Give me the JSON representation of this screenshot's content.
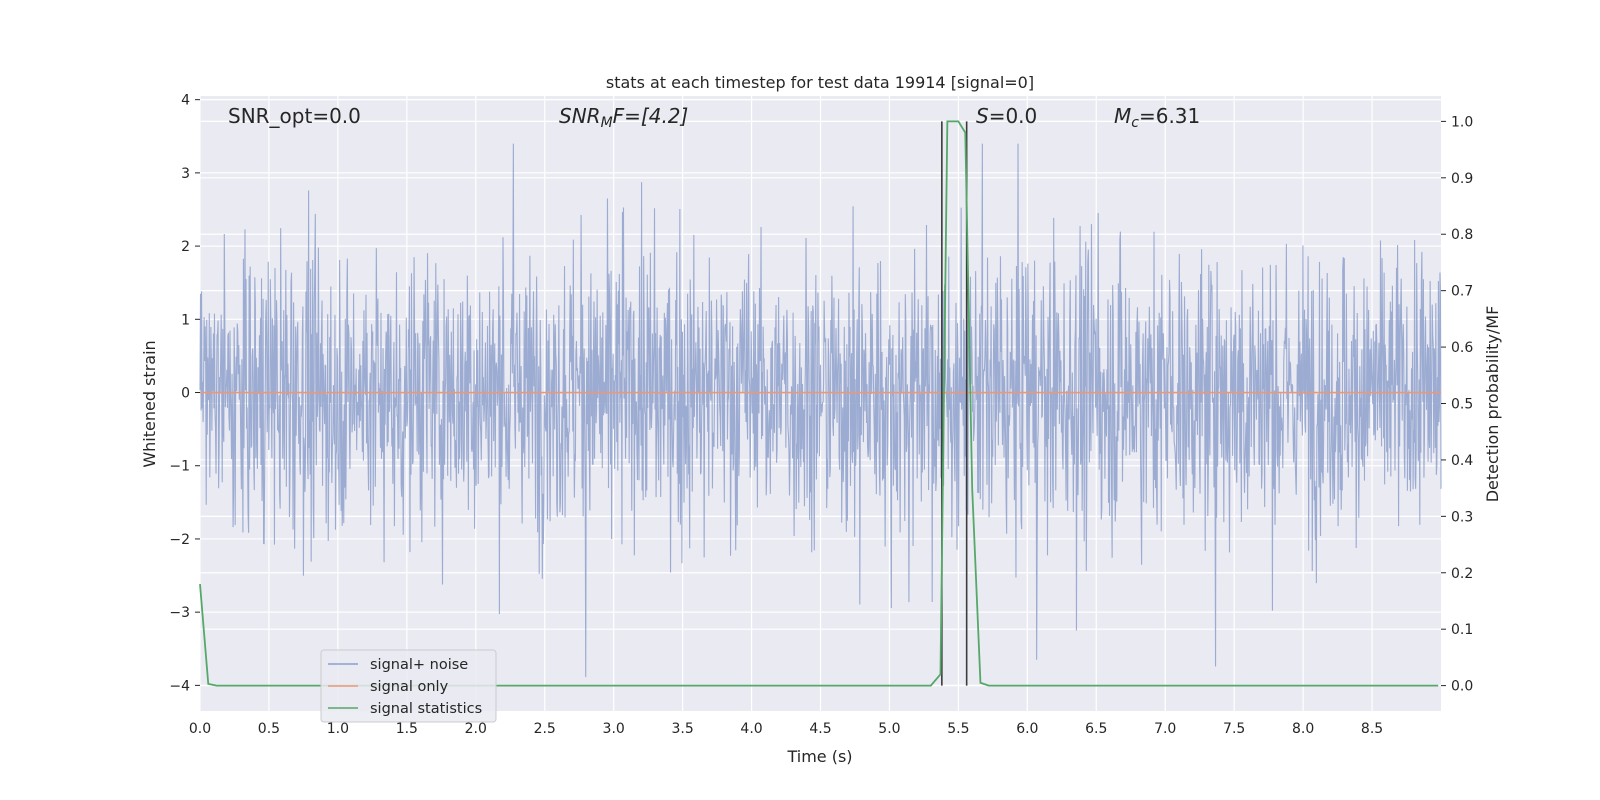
{
  "chart_data": {
    "type": "line",
    "title": "stats at each timestep for test data 19914 [signal=0]",
    "xlabel": "Time (s)",
    "ylabel_left": "Whitened strain",
    "ylabel_right": "Detection probability/MF",
    "xlim": [
      0.0,
      9.0
    ],
    "ylim_left": [
      -4.35,
      4.05
    ],
    "ylim_right": [
      -0.045,
      1.045
    ],
    "x_ticks": [
      "0.0",
      "0.5",
      "1.0",
      "1.5",
      "2.0",
      "2.5",
      "3.0",
      "3.5",
      "4.0",
      "4.5",
      "5.0",
      "5.5",
      "6.0",
      "6.5",
      "7.0",
      "7.5",
      "8.0",
      "8.5"
    ],
    "y_ticks_left": [
      "4",
      "3",
      "2",
      "1",
      "0",
      "−1",
      "−2",
      "−3",
      "−4"
    ],
    "y_ticks_right": [
      "1.0",
      "0.9",
      "0.8",
      "0.7",
      "0.6",
      "0.5",
      "0.4",
      "0.3",
      "0.2",
      "0.1",
      "0.0"
    ],
    "grid": true,
    "legend_position": "lower-left",
    "annotations": {
      "snr_opt": "SNR_opt=0.0",
      "snr_mf_main": "SNR",
      "snr_mf_sub": "M",
      "snr_mf_tail": "F=[4.2]",
      "s_main": "S",
      "s_tail": "=0.0",
      "mc_main": "M",
      "mc_sub": "c",
      "mc_tail": "=6.31"
    },
    "series": [
      {
        "name": "signal+ noise",
        "color": "#8da0cb",
        "axis": "left",
        "description_envelope": {
          "typical_amplitude": 1.3,
          "peak_max": 3.4,
          "peak_min": -4.0
        }
      },
      {
        "name": "signal only",
        "color": "#e79a7b",
        "axis": "left",
        "x": [
          0.0,
          9.0
        ],
        "y": [
          0.0,
          0.0
        ]
      },
      {
        "name": "signal statistics",
        "color": "#55a868",
        "axis": "right",
        "x": [
          0.0,
          0.06,
          0.12,
          5.3,
          5.37,
          5.42,
          5.5,
          5.55,
          5.6,
          5.66,
          5.72,
          8.98
        ],
        "y": [
          0.18,
          0.003,
          0.0,
          0.0,
          0.02,
          1.0,
          1.0,
          0.98,
          0.35,
          0.005,
          0.0,
          0.0
        ]
      }
    ],
    "vertical_lines": [
      5.38,
      5.56
    ]
  },
  "colors": {
    "axes_bg": "#eaeaf2",
    "grid": "#ffffff",
    "noise": "#8da0cb",
    "signal_only": "#e79a7b",
    "stats": "#55a868",
    "vline": "#3b3b3b"
  }
}
